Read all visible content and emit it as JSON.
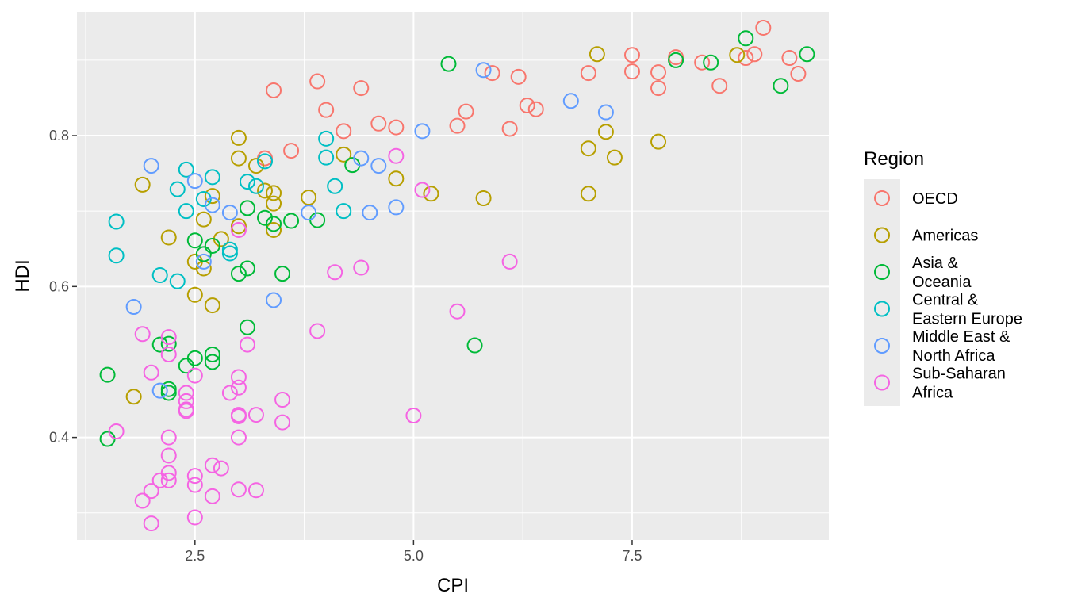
{
  "chart_data": {
    "type": "scatter",
    "xlabel": "CPI",
    "ylabel": "HDI",
    "xlim": [
      1.15,
      9.75
    ],
    "ylim": [
      0.264,
      0.964
    ],
    "x_ticks": [
      2.5,
      5.0,
      7.5
    ],
    "x_tick_labels": [
      "2.5",
      "5.0",
      "7.5"
    ],
    "y_ticks": [
      0.4,
      0.6,
      0.8
    ],
    "y_tick_labels": [
      "0.4",
      "0.6",
      "0.8"
    ],
    "grid": true,
    "legend": {
      "title": "Region",
      "placement": "right"
    },
    "series": [
      {
        "name": [
          "OECD"
        ],
        "color": "#F8766D",
        "points": [
          [
            3.4,
            0.86
          ],
          [
            3.3,
            0.77
          ],
          [
            3.6,
            0.78
          ],
          [
            3.9,
            0.872
          ],
          [
            4.0,
            0.834
          ],
          [
            4.2,
            0.806
          ],
          [
            4.4,
            0.863
          ],
          [
            4.6,
            0.816
          ],
          [
            4.8,
            0.811
          ],
          [
            5.5,
            0.813
          ],
          [
            5.6,
            0.832
          ],
          [
            5.9,
            0.883
          ],
          [
            6.1,
            0.809
          ],
          [
            6.2,
            0.878
          ],
          [
            6.3,
            0.84
          ],
          [
            6.4,
            0.835
          ],
          [
            7.0,
            0.883
          ],
          [
            7.5,
            0.907
          ],
          [
            7.5,
            0.885
          ],
          [
            7.8,
            0.884
          ],
          [
            7.8,
            0.863
          ],
          [
            8.0,
            0.904
          ],
          [
            8.3,
            0.897
          ],
          [
            8.5,
            0.866
          ],
          [
            8.8,
            0.903
          ],
          [
            8.9,
            0.908
          ],
          [
            9.0,
            0.943
          ],
          [
            9.3,
            0.903
          ],
          [
            9.4,
            0.882
          ]
        ]
      },
      {
        "name": [
          "Americas"
        ],
        "color": "#B79F00",
        "points": [
          [
            1.8,
            0.454
          ],
          [
            1.9,
            0.735
          ],
          [
            2.2,
            0.665
          ],
          [
            2.5,
            0.633
          ],
          [
            2.5,
            0.589
          ],
          [
            2.6,
            0.624
          ],
          [
            2.6,
            0.689
          ],
          [
            2.7,
            0.72
          ],
          [
            2.7,
            0.575
          ],
          [
            2.8,
            0.663
          ],
          [
            3.0,
            0.797
          ],
          [
            3.0,
            0.77
          ],
          [
            3.0,
            0.68
          ],
          [
            3.2,
            0.76
          ],
          [
            3.3,
            0.727
          ],
          [
            3.4,
            0.724
          ],
          [
            3.4,
            0.71
          ],
          [
            3.4,
            0.675
          ],
          [
            3.8,
            0.718
          ],
          [
            4.2,
            0.775
          ],
          [
            4.8,
            0.743
          ],
          [
            5.2,
            0.723
          ],
          [
            5.8,
            0.717
          ],
          [
            7.0,
            0.783
          ],
          [
            7.0,
            0.723
          ],
          [
            7.1,
            0.908
          ],
          [
            7.2,
            0.805
          ],
          [
            7.3,
            0.771
          ],
          [
            7.8,
            0.792
          ],
          [
            8.7,
            0.907
          ]
        ]
      },
      {
        "name": [
          "Asia &",
          "Oceania"
        ],
        "color": "#00BA38",
        "points": [
          [
            1.5,
            0.483
          ],
          [
            1.5,
            0.398
          ],
          [
            2.1,
            0.523
          ],
          [
            2.2,
            0.524
          ],
          [
            2.2,
            0.459
          ],
          [
            2.2,
            0.464
          ],
          [
            2.4,
            0.495
          ],
          [
            2.5,
            0.505
          ],
          [
            2.5,
            0.661
          ],
          [
            2.6,
            0.643
          ],
          [
            2.7,
            0.654
          ],
          [
            2.7,
            0.51
          ],
          [
            2.7,
            0.5
          ],
          [
            3.0,
            0.617
          ],
          [
            3.1,
            0.624
          ],
          [
            3.1,
            0.704
          ],
          [
            3.1,
            0.546
          ],
          [
            3.3,
            0.691
          ],
          [
            3.4,
            0.683
          ],
          [
            3.5,
            0.617
          ],
          [
            3.6,
            0.687
          ],
          [
            3.9,
            0.688
          ],
          [
            4.3,
            0.761
          ],
          [
            5.4,
            0.895
          ],
          [
            5.7,
            0.522
          ],
          [
            8.0,
            0.9
          ],
          [
            8.4,
            0.897
          ],
          [
            8.8,
            0.929
          ],
          [
            9.2,
            0.866
          ],
          [
            9.5,
            0.908
          ]
        ]
      },
      {
        "name": [
          "Central &",
          "Eastern Europe"
        ],
        "color": "#00BFC4",
        "points": [
          [
            1.6,
            0.686
          ],
          [
            1.6,
            0.641
          ],
          [
            2.1,
            0.615
          ],
          [
            2.3,
            0.607
          ],
          [
            2.3,
            0.729
          ],
          [
            2.4,
            0.755
          ],
          [
            2.4,
            0.7
          ],
          [
            2.6,
            0.716
          ],
          [
            2.7,
            0.745
          ],
          [
            2.9,
            0.649
          ],
          [
            2.9,
            0.644
          ],
          [
            3.1,
            0.739
          ],
          [
            3.2,
            0.733
          ],
          [
            3.3,
            0.766
          ],
          [
            4.0,
            0.796
          ],
          [
            4.0,
            0.771
          ],
          [
            4.1,
            0.733
          ],
          [
            4.2,
            0.7
          ]
        ]
      },
      {
        "name": [
          "Middle East &",
          "North Africa"
        ],
        "color": "#619CFF",
        "points": [
          [
            1.8,
            0.573
          ],
          [
            2.0,
            0.76
          ],
          [
            2.1,
            0.462
          ],
          [
            2.5,
            0.74
          ],
          [
            2.6,
            0.633
          ],
          [
            2.7,
            0.708
          ],
          [
            2.9,
            0.698
          ],
          [
            3.4,
            0.582
          ],
          [
            3.8,
            0.698
          ],
          [
            4.4,
            0.77
          ],
          [
            4.5,
            0.698
          ],
          [
            4.6,
            0.76
          ],
          [
            4.8,
            0.705
          ],
          [
            5.1,
            0.806
          ],
          [
            5.8,
            0.887
          ],
          [
            6.8,
            0.846
          ],
          [
            7.2,
            0.831
          ]
        ]
      },
      {
        "name": [
          "Sub-Saharan",
          "Africa"
        ],
        "color": "#F564E3",
        "points": [
          [
            1.6,
            0.408
          ],
          [
            1.9,
            0.316
          ],
          [
            1.9,
            0.537
          ],
          [
            2.0,
            0.286
          ],
          [
            2.0,
            0.486
          ],
          [
            2.0,
            0.329
          ],
          [
            2.1,
            0.343
          ],
          [
            2.2,
            0.343
          ],
          [
            2.2,
            0.533
          ],
          [
            2.2,
            0.51
          ],
          [
            2.2,
            0.4
          ],
          [
            2.2,
            0.376
          ],
          [
            2.2,
            0.353
          ],
          [
            2.4,
            0.459
          ],
          [
            2.4,
            0.448
          ],
          [
            2.4,
            0.435
          ],
          [
            2.4,
            0.437
          ],
          [
            2.5,
            0.482
          ],
          [
            2.5,
            0.349
          ],
          [
            2.5,
            0.337
          ],
          [
            2.5,
            0.294
          ],
          [
            2.7,
            0.322
          ],
          [
            2.7,
            0.363
          ],
          [
            2.8,
            0.359
          ],
          [
            2.9,
            0.459
          ],
          [
            3.0,
            0.48
          ],
          [
            3.0,
            0.466
          ],
          [
            3.0,
            0.43
          ],
          [
            3.0,
            0.428
          ],
          [
            3.0,
            0.4
          ],
          [
            3.0,
            0.331
          ],
          [
            3.0,
            0.675
          ],
          [
            3.1,
            0.523
          ],
          [
            3.2,
            0.43
          ],
          [
            3.2,
            0.33
          ],
          [
            3.5,
            0.45
          ],
          [
            3.5,
            0.42
          ],
          [
            3.9,
            0.541
          ],
          [
            4.1,
            0.619
          ],
          [
            4.4,
            0.625
          ],
          [
            4.8,
            0.773
          ],
          [
            5.0,
            0.429
          ],
          [
            5.1,
            0.728
          ],
          [
            5.5,
            0.567
          ],
          [
            6.1,
            0.633
          ]
        ]
      }
    ]
  }
}
